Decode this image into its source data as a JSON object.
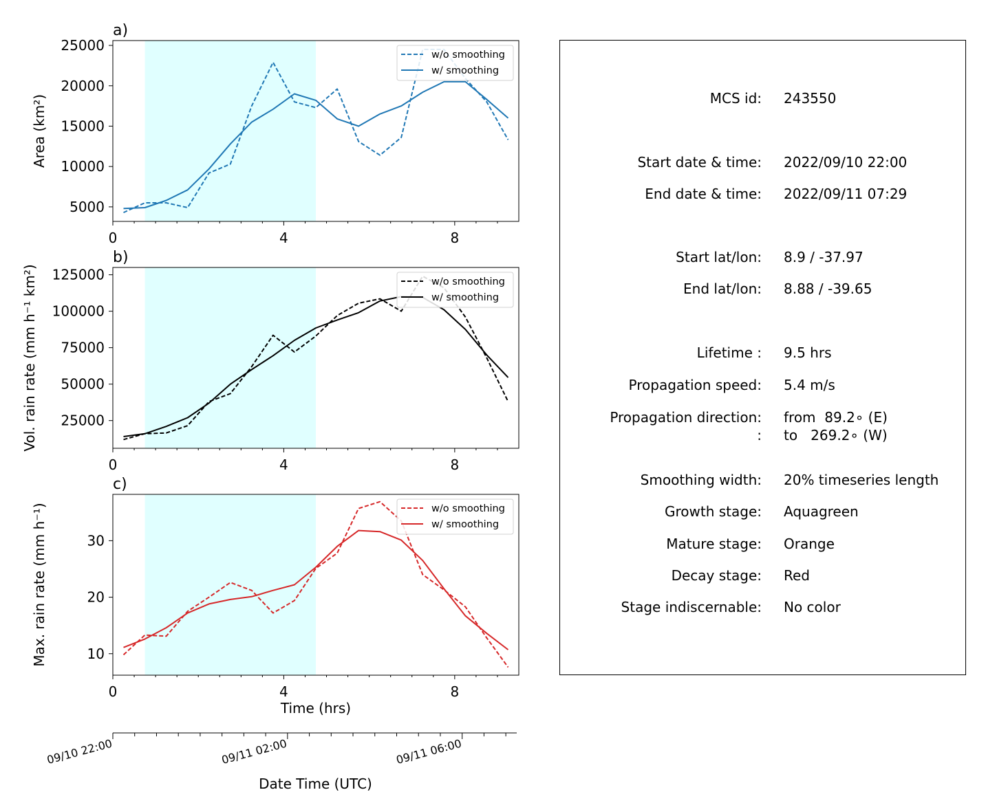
{
  "x_axis": {
    "label": "Time (hrs)",
    "ticks": [
      0,
      4,
      8
    ],
    "range": [
      0,
      9.5
    ]
  },
  "date_axis": {
    "label": "Date Time (UTC)",
    "ticks": [
      "09/10 22:00",
      "09/11 02:00",
      "09/11 06:00"
    ],
    "tick_hours": [
      0,
      4,
      8
    ]
  },
  "stage_shading": {
    "growth": [
      0.75,
      4.75
    ],
    "color": "#e0ffff"
  },
  "chart_data": [
    {
      "type": "line",
      "panel_label": "a)",
      "ylabel": "Area  (km²)",
      "yticks": [
        5000,
        10000,
        15000,
        20000,
        25000
      ],
      "ylim": [
        3200,
        25600
      ],
      "color": "#1f77b4",
      "legend": "top-right",
      "series": [
        {
          "name": "w/o smoothing",
          "style": "dashed",
          "x": [
            0.25,
            0.75,
            1.25,
            1.75,
            2.25,
            2.75,
            3.25,
            3.75,
            4.25,
            4.75,
            5.25,
            5.75,
            6.25,
            6.75,
            7.25,
            7.75,
            8.25,
            8.75,
            9.25
          ],
          "y": [
            4300,
            5500,
            5500,
            4900,
            9200,
            10300,
            17500,
            22900,
            18000,
            17300,
            19600,
            13100,
            11400,
            13600,
            24500,
            24500,
            20900,
            18000,
            13300
          ]
        },
        {
          "name": "w/ smoothing",
          "style": "solid",
          "x": [
            0.25,
            0.75,
            1.25,
            1.75,
            2.25,
            2.75,
            3.25,
            3.75,
            4.25,
            4.75,
            5.25,
            5.75,
            6.25,
            6.75,
            7.25,
            7.75,
            8.25,
            8.75,
            9.25
          ],
          "y": [
            4800,
            4900,
            5800,
            7100,
            9700,
            12800,
            15500,
            17100,
            19000,
            18200,
            15900,
            15000,
            16500,
            17500,
            19200,
            20500,
            20500,
            18300,
            16000
          ]
        }
      ]
    },
    {
      "type": "line",
      "panel_label": "b)",
      "ylabel": "Vol. rain rate (mm h⁻¹ km²)",
      "yticks": [
        25000,
        50000,
        75000,
        100000,
        125000
      ],
      "ylim": [
        6000,
        130000
      ],
      "color": "#000000",
      "legend": "top-right",
      "series": [
        {
          "name": "w/o smoothing",
          "style": "dashed",
          "x": [
            0.25,
            0.75,
            1.25,
            1.75,
            2.25,
            2.75,
            3.25,
            3.75,
            4.25,
            4.75,
            5.25,
            5.75,
            6.25,
            6.75,
            7.25,
            7.75,
            8.25,
            8.75,
            9.25
          ],
          "y": [
            12000,
            16000,
            16500,
            21500,
            38000,
            43500,
            62000,
            83500,
            72000,
            83000,
            97000,
            105500,
            108500,
            100000,
            124000,
            116000,
            96000,
            68000,
            38000
          ]
        },
        {
          "name": "w/ smoothing",
          "style": "solid",
          "x": [
            0.25,
            0.75,
            1.25,
            1.75,
            2.25,
            2.75,
            3.25,
            3.75,
            4.25,
            4.75,
            5.25,
            5.75,
            6.25,
            6.75,
            7.25,
            7.75,
            8.25,
            8.75,
            9.25
          ],
          "y": [
            14000,
            16000,
            21000,
            27000,
            37000,
            50000,
            60000,
            69500,
            80000,
            88500,
            94000,
            99000,
            107000,
            110000,
            109500,
            101000,
            87500,
            70000,
            54500
          ]
        }
      ]
    },
    {
      "type": "line",
      "panel_label": "c)",
      "ylabel": "Max. rain rate  (mm h⁻¹)",
      "yticks": [
        10,
        20,
        30
      ],
      "ylim": [
        6.2,
        38.2
      ],
      "color": "#d62728",
      "legend": "top-right",
      "series": [
        {
          "name": "w/o smoothing",
          "style": "dashed",
          "x": [
            0.25,
            0.75,
            1.25,
            1.75,
            2.25,
            2.75,
            3.25,
            3.75,
            4.25,
            4.75,
            5.25,
            5.75,
            6.25,
            6.75,
            7.25,
            7.75,
            8.25,
            8.75,
            9.25
          ],
          "y": [
            9.8,
            13.3,
            13.1,
            17.5,
            20.0,
            22.6,
            21.2,
            17.2,
            19.4,
            25.1,
            27.8,
            35.7,
            36.9,
            33.5,
            24.0,
            21.3,
            18.3,
            12.8,
            7.6
          ]
        },
        {
          "name": "w/ smoothing",
          "style": "solid",
          "x": [
            0.25,
            0.75,
            1.25,
            1.75,
            2.25,
            2.75,
            3.25,
            3.75,
            4.25,
            4.75,
            5.25,
            5.75,
            6.25,
            6.75,
            7.25,
            7.75,
            8.25,
            8.75,
            9.25
          ],
          "y": [
            11.1,
            12.6,
            14.6,
            17.2,
            18.8,
            19.6,
            20.1,
            21.2,
            22.2,
            25.3,
            29.0,
            31.8,
            31.6,
            30.1,
            26.5,
            21.5,
            16.7,
            13.6,
            10.7
          ]
        }
      ]
    }
  ],
  "info": {
    "rows": [
      {
        "label": "MCS id:",
        "value": "243550"
      },
      {
        "label": "Start date & time:",
        "value": "2022/09/10 22:00"
      },
      {
        "label": "End date & time:",
        "value": "2022/09/11 07:29"
      },
      {
        "label": "Start lat/lon:",
        "value": "8.9 / -37.97"
      },
      {
        "label": "End lat/lon:",
        "value": "8.88 / -39.65"
      },
      {
        "label": "Lifetime :",
        "value": "9.5 hrs"
      },
      {
        "label": "Propagation speed:",
        "value": "5.4 m/s"
      },
      {
        "label": "Propagation direction:",
        "value": "from  89.2∘ (E)"
      },
      {
        "label": ":",
        "value": "to   269.2∘ (W)"
      },
      {
        "label": "Smoothing width:",
        "value": "20% timeseries length"
      },
      {
        "label": "Growth stage:",
        "value": "Aquagreen"
      },
      {
        "label": "Mature stage:",
        "value": "Orange"
      },
      {
        "label": "Decay stage:",
        "value": "Red"
      },
      {
        "label": "Stage indiscernable:",
        "value": "No color"
      }
    ]
  }
}
